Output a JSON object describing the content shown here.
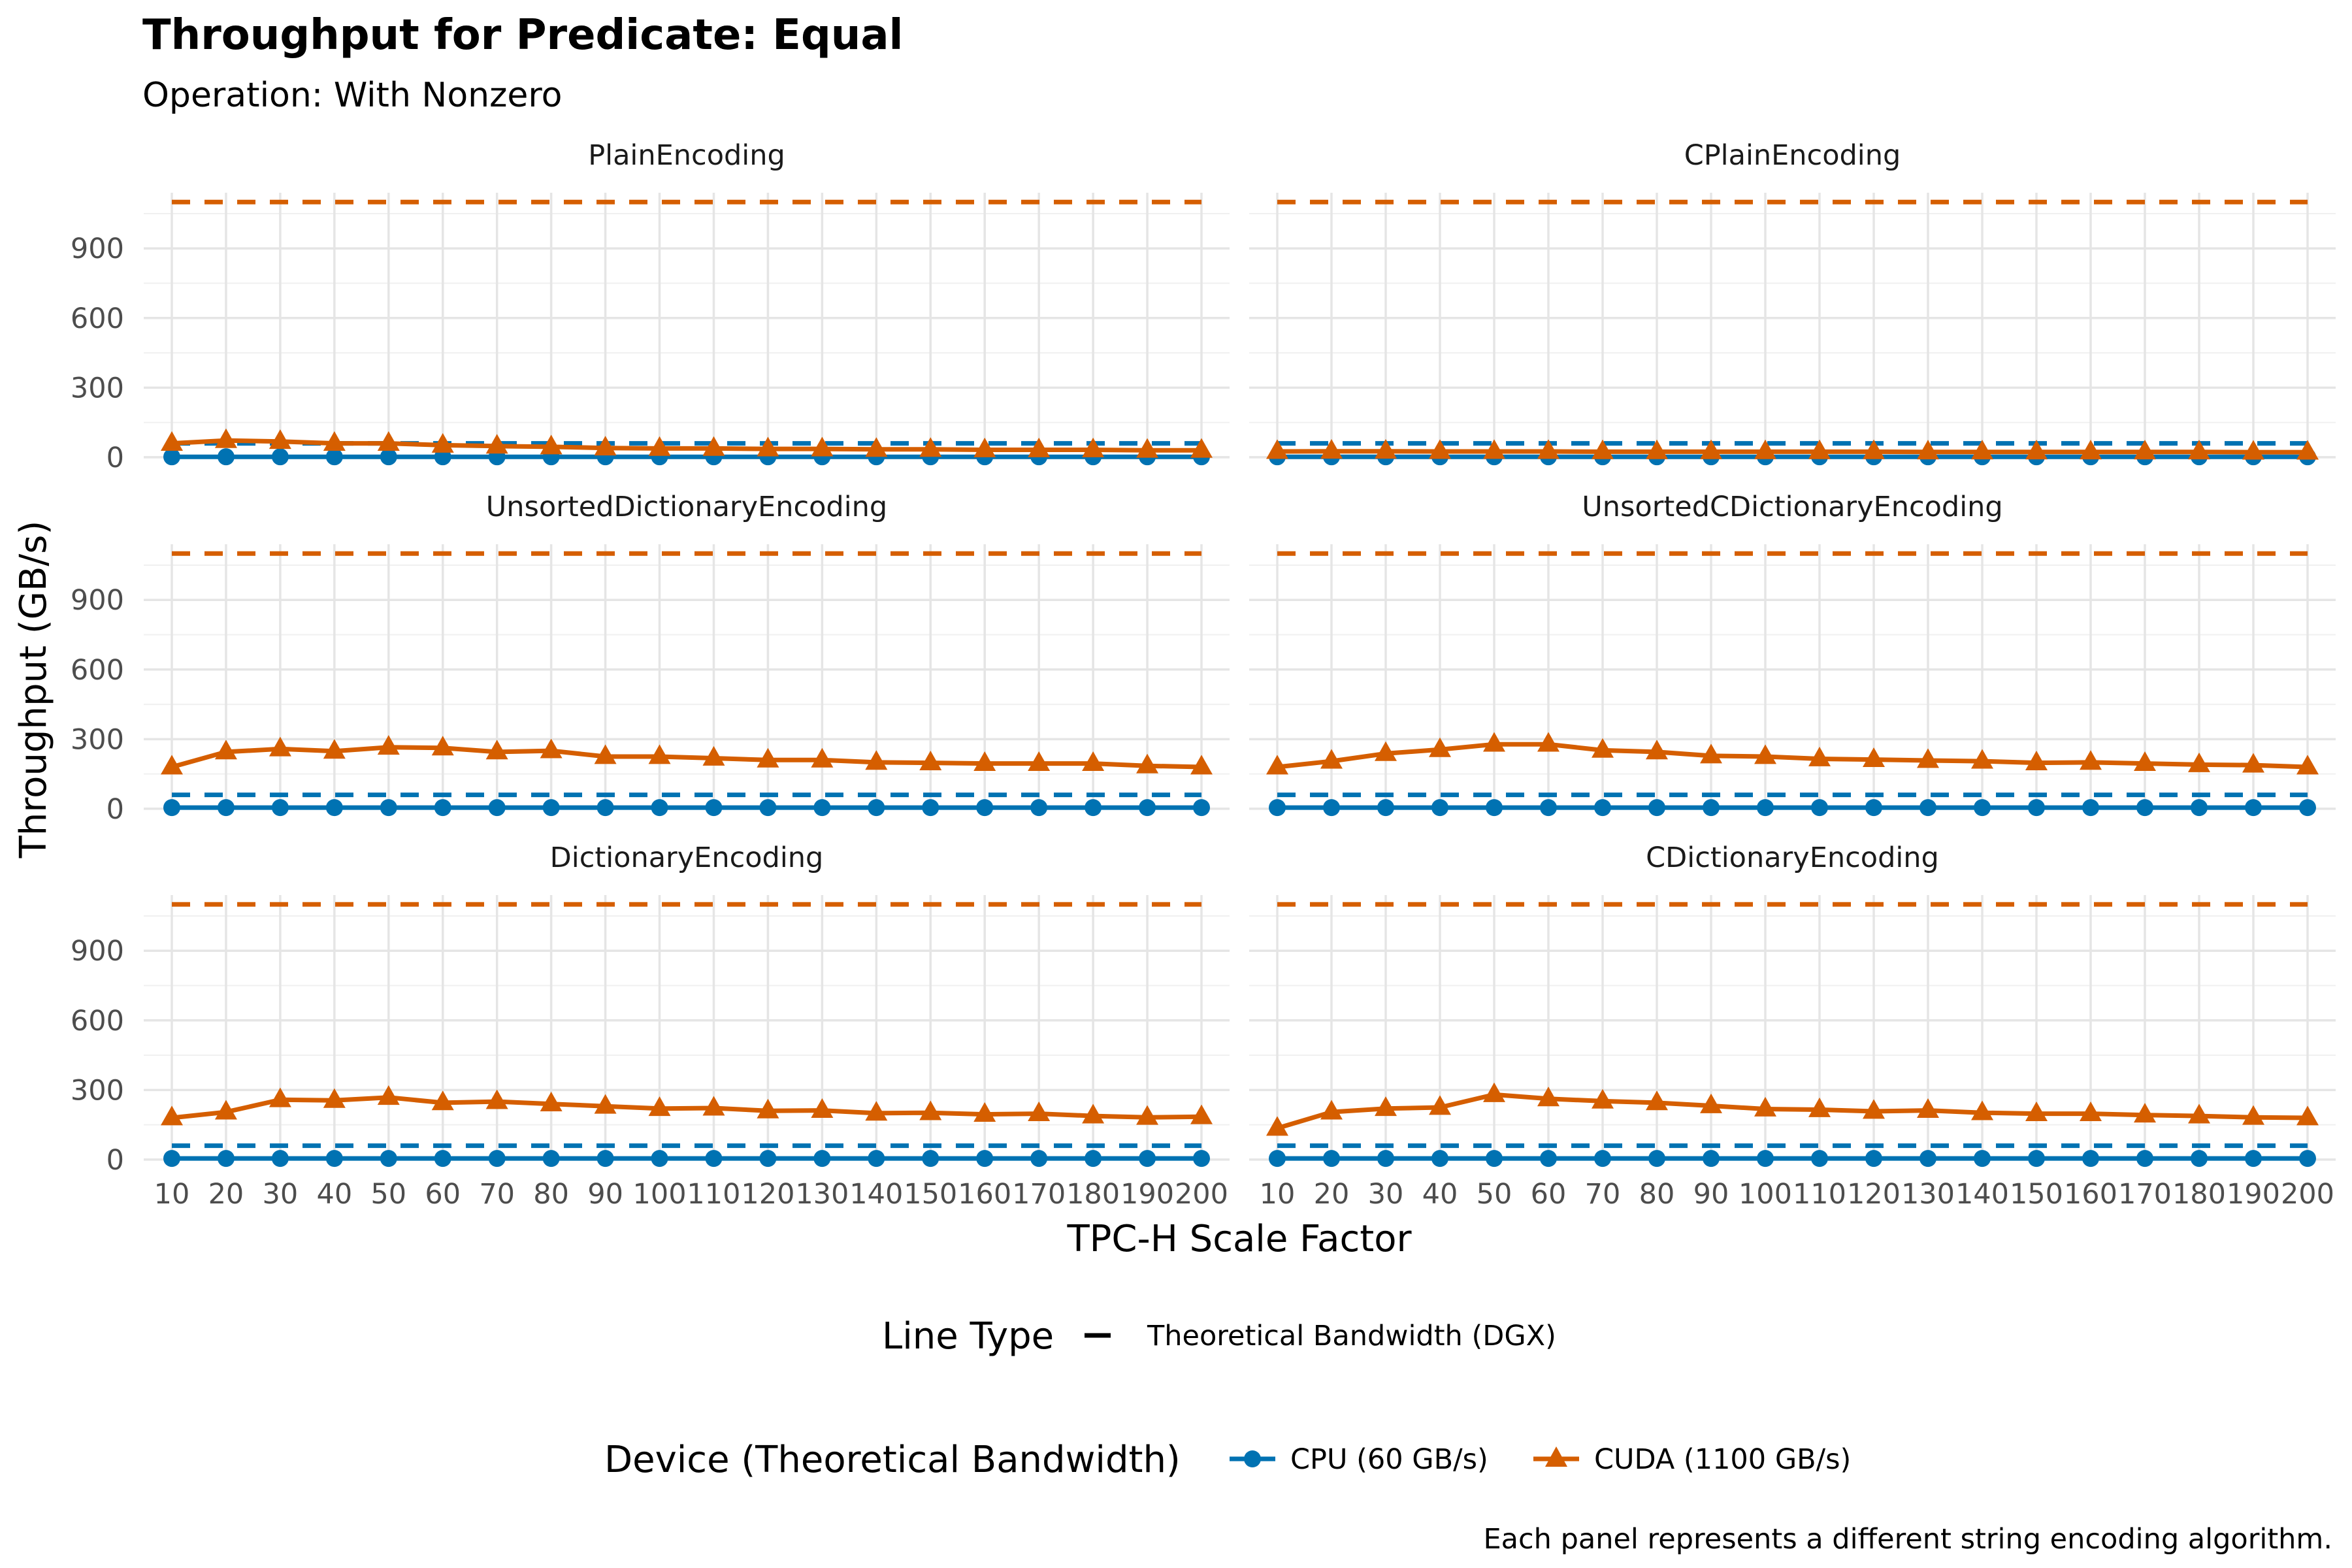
{
  "chart_data": {
    "type": "line",
    "title": "Throughput for Predicate: Equal",
    "subtitle": "Operation: With Nonzero",
    "xlabel": "TPC-H Scale Factor",
    "ylabel": "Throughput (GB/s)",
    "x": [
      10,
      20,
      30,
      40,
      50,
      60,
      70,
      80,
      90,
      100,
      110,
      120,
      130,
      140,
      150,
      160,
      170,
      180,
      190,
      200
    ],
    "yticks": [
      0,
      300,
      600,
      900
    ],
    "ylim": [
      -20,
      1140
    ],
    "grid": true,
    "legend_position": "bottom",
    "legend_linetype": {
      "title": "Line Type",
      "entries": [
        "Theoretical Bandwidth (DGX)"
      ]
    },
    "legend_device": {
      "title": "Device (Theoretical Bandwidth)",
      "entries": [
        {
          "name": "CPU (60 GB/s)",
          "color": "#0072B2",
          "marker": "circle"
        },
        {
          "name": "CUDA (1100 GB/s)",
          "color": "#D55E00",
          "marker": "triangle"
        }
      ]
    },
    "bandwidth_lines": [
      {
        "device": "CPU (60 GB/s)",
        "value": 60,
        "color": "#0072B2",
        "style": "dashed"
      },
      {
        "device": "CUDA (1100 GB/s)",
        "value": 1100,
        "color": "#D55E00",
        "style": "dashed"
      }
    ],
    "caption": "Each panel represents a different string encoding algorithm.",
    "panels": [
      {
        "name": "PlainEncoding",
        "series": [
          {
            "name": "CPU (60 GB/s)",
            "values": [
              2,
              2,
              2,
              2,
              2,
              2,
              2,
              2,
              2,
              2,
              2,
              2,
              2,
              2,
              2,
              2,
              2,
              2,
              2,
              2
            ]
          },
          {
            "name": "CUDA (1100 GB/s)",
            "values": [
              60,
              72,
              68,
              60,
              60,
              52,
              48,
              45,
              40,
              38,
              38,
              36,
              36,
              34,
              34,
              32,
              32,
              32,
              30,
              30
            ]
          }
        ]
      },
      {
        "name": "CPlainEncoding",
        "series": [
          {
            "name": "CPU (60 GB/s)",
            "values": [
              2,
              2,
              2,
              2,
              2,
              2,
              2,
              2,
              2,
              2,
              2,
              2,
              2,
              2,
              2,
              2,
              2,
              2,
              2,
              2
            ]
          },
          {
            "name": "CUDA (1100 GB/s)",
            "values": [
              25,
              26,
              26,
              25,
              25,
              25,
              24,
              24,
              24,
              24,
              24,
              24,
              23,
              23,
              23,
              23,
              23,
              23,
              22,
              22
            ]
          }
        ]
      },
      {
        "name": "UnsortedDictionaryEncoding",
        "series": [
          {
            "name": "CPU (60 GB/s)",
            "values": [
              5,
              5,
              5,
              5,
              5,
              5,
              5,
              5,
              5,
              5,
              5,
              5,
              5,
              5,
              5,
              5,
              5,
              5,
              5,
              5
            ]
          },
          {
            "name": "CUDA (1100 GB/s)",
            "values": [
              180,
              245,
              258,
              248,
              265,
              262,
              245,
              250,
              225,
              225,
              218,
              210,
              210,
              200,
              198,
              195,
              195,
              195,
              185,
              180
            ]
          }
        ]
      },
      {
        "name": "UnsortedCDictionaryEncoding",
        "series": [
          {
            "name": "CPU (60 GB/s)",
            "values": [
              5,
              5,
              5,
              5,
              5,
              5,
              5,
              5,
              5,
              5,
              5,
              5,
              5,
              5,
              5,
              5,
              5,
              5,
              5,
              5
            ]
          },
          {
            "name": "CUDA (1100 GB/s)",
            "values": [
              180,
              205,
              238,
              255,
              278,
              278,
              252,
              245,
              228,
              225,
              215,
              212,
              208,
              205,
              198,
              200,
              195,
              190,
              188,
              180
            ]
          }
        ]
      },
      {
        "name": "DictionaryEncoding",
        "series": [
          {
            "name": "CPU (60 GB/s)",
            "values": [
              5,
              5,
              5,
              5,
              5,
              5,
              5,
              5,
              5,
              5,
              5,
              5,
              5,
              5,
              5,
              5,
              5,
              5,
              5,
              5
            ]
          },
          {
            "name": "CUDA (1100 GB/s)",
            "values": [
              180,
              205,
              258,
              255,
              268,
              245,
              250,
              240,
              230,
              220,
              222,
              210,
              212,
              200,
              202,
              195,
              198,
              188,
              182,
              185
            ]
          }
        ]
      },
      {
        "name": "CDictionaryEncoding",
        "series": [
          {
            "name": "CPU (60 GB/s)",
            "values": [
              5,
              5,
              5,
              5,
              5,
              5,
              5,
              5,
              5,
              5,
              5,
              5,
              5,
              5,
              5,
              5,
              5,
              5,
              5,
              5
            ]
          },
          {
            "name": "CUDA (1100 GB/s)",
            "values": [
              135,
              205,
              220,
              225,
              280,
              262,
              252,
              245,
              232,
              218,
              215,
              208,
              212,
              202,
              198,
              198,
              192,
              188,
              182,
              180
            ]
          }
        ]
      }
    ]
  }
}
